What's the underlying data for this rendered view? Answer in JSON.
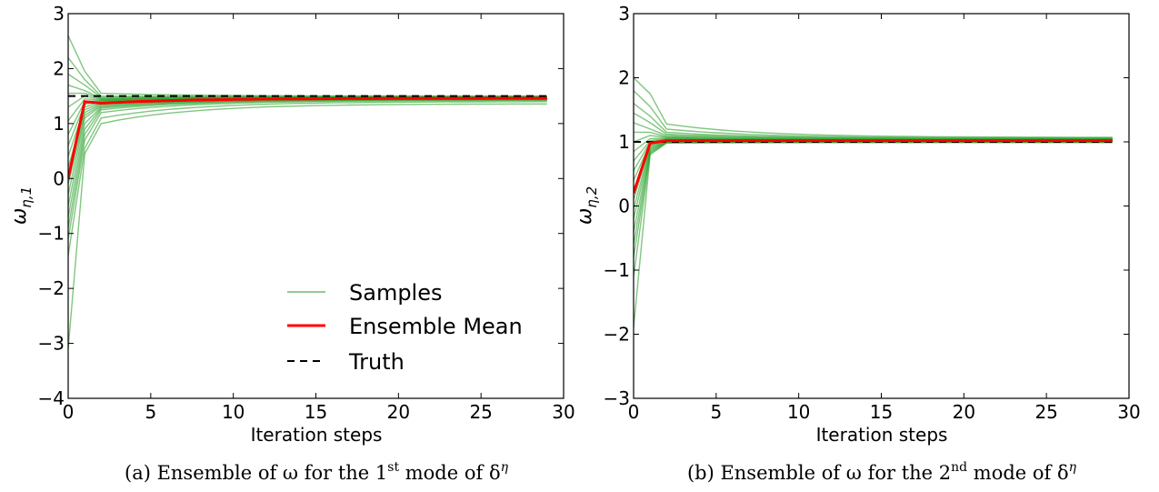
{
  "chart_data": [
    {
      "type": "line",
      "id": "a",
      "xlabel": "Iteration steps",
      "ylabel_base": "ω",
      "ylabel_sub": "η,1",
      "xlim": [
        0,
        30
      ],
      "ylim": [
        -4,
        3
      ],
      "xticks": [
        0,
        5,
        10,
        15,
        20,
        25,
        30
      ],
      "yticks": [
        -4,
        -3,
        -2,
        -1,
        0,
        1,
        2,
        3
      ],
      "grid": false,
      "legend_position": "lower-right",
      "x": [
        0,
        1,
        2,
        3,
        4,
        5,
        6,
        7,
        8,
        9,
        10,
        11,
        12,
        13,
        14,
        15,
        16,
        17,
        18,
        19,
        20,
        21,
        22,
        23,
        24,
        25,
        26,
        27,
        28,
        29
      ],
      "samples_start": [
        2.6,
        2.2,
        1.9,
        1.7,
        1.55,
        1.3,
        1.05,
        0.8,
        0.6,
        0.4,
        0.2,
        0.05,
        -0.1,
        -0.3,
        -0.5,
        -0.7,
        -0.9,
        -1.1,
        -1.4,
        -3.1
      ],
      "samples_step1": [
        1.95,
        1.8,
        1.7,
        1.6,
        1.55,
        1.5,
        1.45,
        1.4,
        1.35,
        1.3,
        1.25,
        1.2,
        1.15,
        1.1,
        1.0,
        0.9,
        0.8,
        0.7,
        0.55,
        0.45
      ],
      "samples_step2": [
        1.55,
        1.5,
        1.48,
        1.46,
        1.45,
        1.44,
        1.43,
        1.42,
        1.41,
        1.4,
        1.38,
        1.36,
        1.34,
        1.32,
        1.3,
        1.28,
        1.25,
        1.2,
        1.1,
        1.0
      ],
      "samples_final": [
        1.5,
        1.49,
        1.49,
        1.48,
        1.48,
        1.47,
        1.47,
        1.47,
        1.46,
        1.46,
        1.46,
        1.45,
        1.45,
        1.45,
        1.44,
        1.44,
        1.43,
        1.42,
        1.4,
        1.36
      ],
      "mean": {
        "name": "Ensemble Mean",
        "color": "#ff0000",
        "start": 0.0,
        "step1": 1.4,
        "step2": 1.37,
        "final": 1.46
      },
      "truth": {
        "name": "Truth",
        "value": 1.5,
        "color": "#000000"
      },
      "samples_name": "Samples",
      "samples_color": "#2ca02c",
      "caption_main": "(a) Ensemble of ω for the 1",
      "caption_sup": "st",
      "caption_mid": " mode of δ",
      "caption_sup2": "η"
    },
    {
      "type": "line",
      "id": "b",
      "xlabel": "Iteration steps",
      "ylabel_base": "ω",
      "ylabel_sub": "η,2",
      "xlim": [
        0,
        30
      ],
      "ylim": [
        -3,
        3
      ],
      "xticks": [
        0,
        5,
        10,
        15,
        20,
        25,
        30
      ],
      "yticks": [
        -3,
        -2,
        -1,
        0,
        1,
        2,
        3
      ],
      "grid": false,
      "x": [
        0,
        1,
        2,
        3,
        4,
        5,
        6,
        7,
        8,
        9,
        10,
        11,
        12,
        13,
        14,
        15,
        16,
        17,
        18,
        19,
        20,
        21,
        22,
        23,
        24,
        25,
        26,
        27,
        28,
        29
      ],
      "samples_start": [
        2.0,
        1.8,
        1.6,
        1.45,
        1.3,
        1.15,
        1.0,
        0.85,
        0.7,
        0.55,
        0.4,
        0.25,
        0.1,
        -0.05,
        -0.2,
        -0.4,
        -0.6,
        -0.8,
        -1.1,
        -1.9
      ],
      "samples_step1": [
        1.75,
        1.55,
        1.4,
        1.3,
        1.2,
        1.15,
        1.1,
        1.05,
        1.02,
        1.0,
        0.98,
        0.96,
        0.94,
        0.92,
        0.9,
        0.88,
        0.86,
        0.84,
        0.82,
        0.8
      ],
      "samples_step2": [
        1.28,
        1.2,
        1.15,
        1.12,
        1.1,
        1.08,
        1.07,
        1.06,
        1.05,
        1.04,
        1.03,
        1.02,
        1.02,
        1.01,
        1.01,
        1.0,
        1.0,
        0.99,
        0.99,
        0.98
      ],
      "samples_final": [
        1.07,
        1.06,
        1.05,
        1.05,
        1.04,
        1.04,
        1.03,
        1.03,
        1.03,
        1.02,
        1.02,
        1.02,
        1.01,
        1.01,
        1.01,
        1.0,
        1.0,
        1.0,
        0.99,
        0.99
      ],
      "mean": {
        "name": "Ensemble Mean",
        "color": "#ff0000",
        "start": 0.2,
        "step1": 0.98,
        "step2": 1.02,
        "final": 1.02
      },
      "truth": {
        "name": "Truth",
        "value": 1.0,
        "color": "#000000"
      },
      "samples_name": "Samples",
      "samples_color": "#2ca02c",
      "caption_main": "(b) Ensemble of ω for the 2",
      "caption_sup": "nd",
      "caption_mid": " mode of δ",
      "caption_sup2": "η"
    }
  ]
}
